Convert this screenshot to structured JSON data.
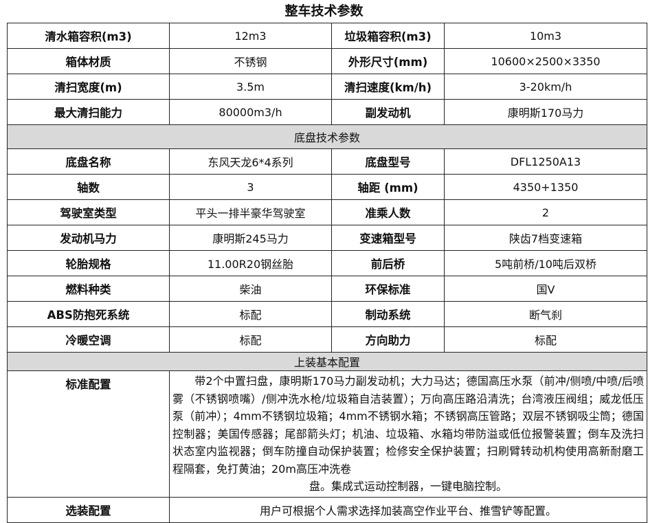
{
  "title": "整车技术参数",
  "vehicle": [
    [
      "清水箱容积(m3)",
      "12m3",
      "垃圾箱容积(m3)",
      "10m3"
    ],
    [
      "箱体材质",
      "不锈钢",
      "外形尺寸(mm)",
      "10600×2500×3350"
    ],
    [
      "清扫宽度(m)",
      "3.5m",
      "清扫速度(km/h)",
      "3-20km/h"
    ],
    [
      "最大清扫能力",
      "80000m3/h",
      "副发动机",
      "康明斯170马力"
    ]
  ],
  "chassis_title": "底盘技术参数",
  "chassis": [
    [
      "底盘名称",
      "东风天龙6*4系列",
      "底盘型号",
      "DFL1250A13"
    ],
    [
      "轴数",
      "3",
      "轴距 (mm)",
      "4350+1350"
    ],
    [
      "驾驶室类型",
      "平头一排半豪华驾驶室",
      "准乘人数",
      "2"
    ],
    [
      "发动机马力",
      "康明斯245马力",
      "变速箱型号",
      "陕齿7档变速箱"
    ],
    [
      "轮胎规格",
      "11.00R20钢丝胎",
      "前后桥",
      "5吨前桥/10吨后双桥"
    ],
    [
      "燃料种类",
      "柴油",
      "环保标准",
      "国V"
    ],
    [
      "ABS防抱死系统",
      "标配",
      "制动系统",
      "断气刹"
    ],
    [
      "冷暖空调",
      "标配",
      "方向助力",
      "标配"
    ]
  ],
  "upper_title": "上装基本配置",
  "standard": {
    "label": "标准配置",
    "text": "　　带2个中置扫盘，康明斯170马力副发动机；大力马达；德国高压水泵（前冲/侧喷/中喷/后喷雾（不锈钢喷嘴）/侧冲洗水枪/垃圾箱自洁装置）；万向高压路沿清洗；台湾液压阀组；威龙低压泵（前冲）；4mm不锈钢垃圾箱；4mm不锈钢水箱；不锈钢高压管路；双层不锈钢吸尘筒；德国控制器；美国传感器；尾部箭头灯；机油、垃圾箱、水箱均带防溢或低位报警装置；倒车及洗扫状态室内监视器；倒车防撞自动保护装置；检修安全保护装置；扫刷臂转动机构使用高新耐磨工程隔套，免打黄油；20m高压冲洗卷",
    "text_end": "盘。集成式运动控制器，一键电脑控制。"
  },
  "optional": {
    "label": "选装配置",
    "text": "用户可根据个人需求选择加装高空作业平台、推雪铲等配置。"
  }
}
